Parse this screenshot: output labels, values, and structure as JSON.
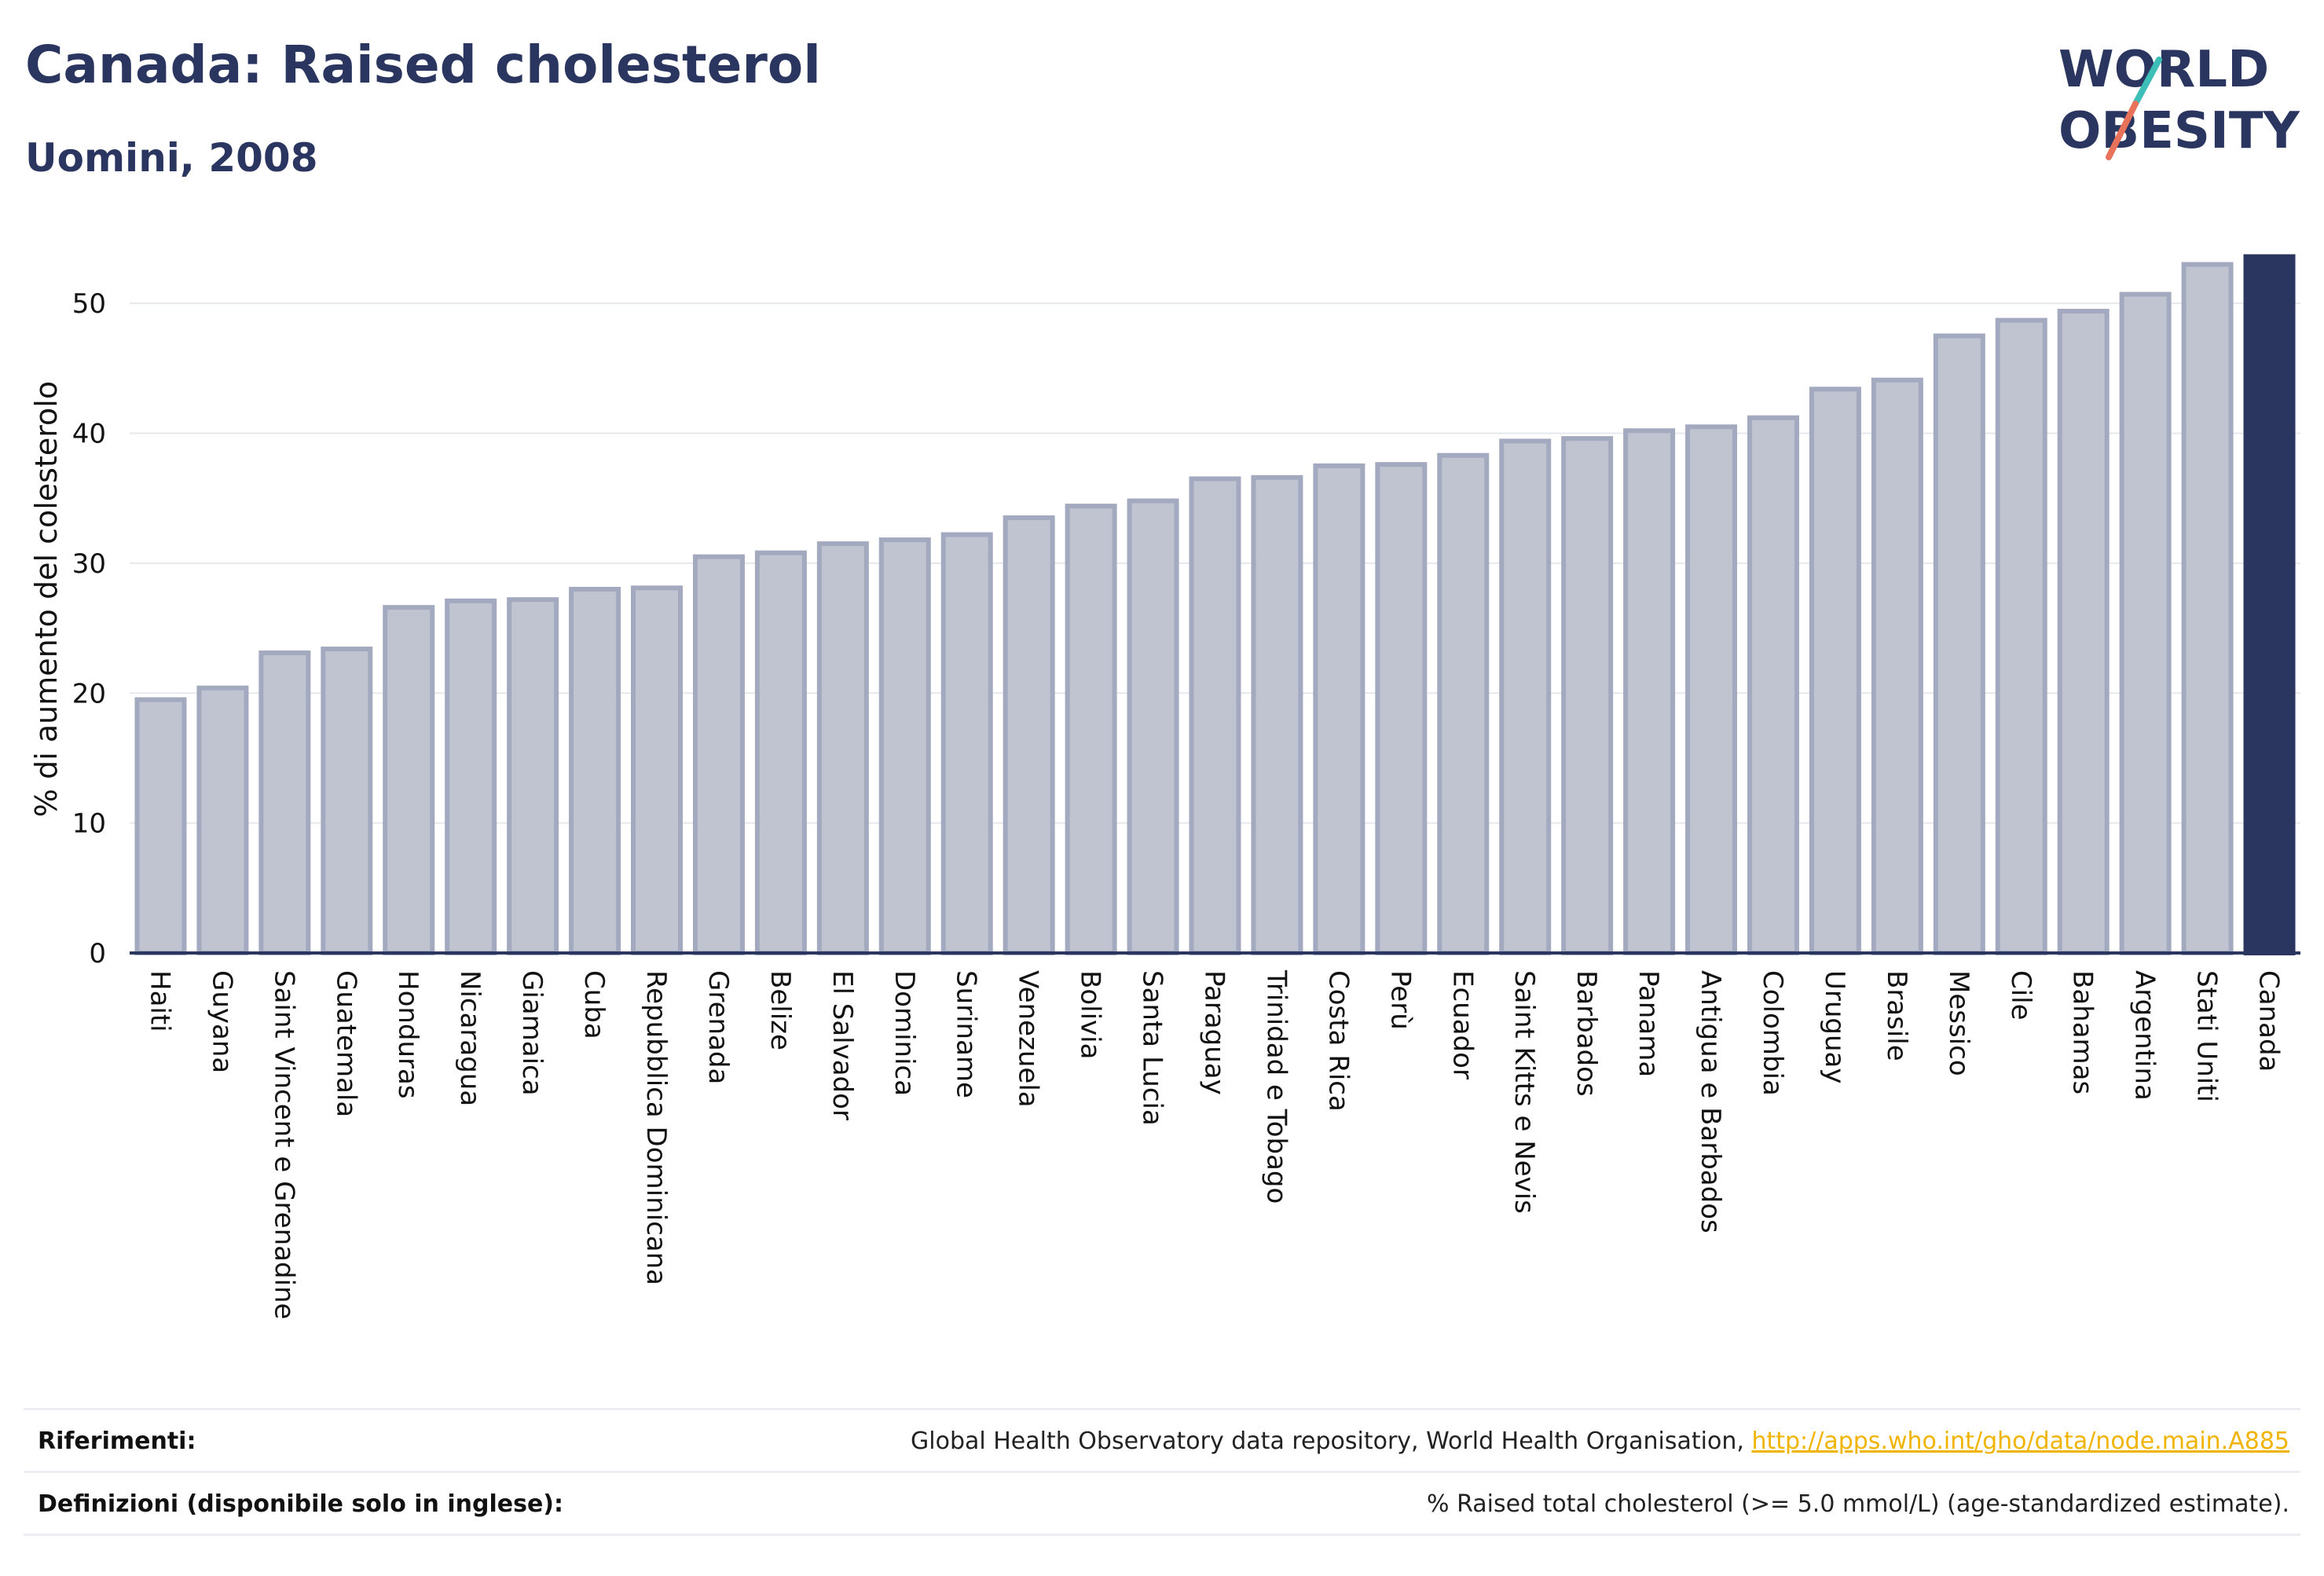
{
  "header": {
    "title": "Canada: Raised cholesterol",
    "subtitle": "Uomini, 2008"
  },
  "logo": {
    "line1": "WORLD",
    "line2": "OBESITY",
    "accent_colors": [
      "#3dbfb8",
      "#e8735a"
    ]
  },
  "chart_data": {
    "type": "bar",
    "title": "Canada: Raised cholesterol",
    "subtitle": "Uomini, 2008",
    "xlabel": "",
    "ylabel": "% di aumento del colesterolo",
    "ylim": [
      0,
      54
    ],
    "yticks": [
      0,
      10,
      20,
      30,
      40,
      50
    ],
    "grid": true,
    "highlight": "Canada",
    "colors": {
      "bar": "#c0c4d1",
      "bar_border": "#a3a9bf",
      "highlight": "#2b3660",
      "axis": "#2b3660",
      "grid": "#e6e8ef"
    },
    "categories": [
      "Haiti",
      "Guyana",
      "Saint Vincent e Grenadine",
      "Guatemala",
      "Honduras",
      "Nicaragua",
      "Giamaica",
      "Cuba",
      "Repubblica Dominicana",
      "Grenada",
      "Belize",
      "El Salvador",
      "Dominica",
      "Suriname",
      "Venezuela",
      "Bolivia",
      "Santa Lucia",
      "Paraguay",
      "Trinidad e Tobago",
      "Costa Rica",
      "Perù",
      "Ecuador",
      "Saint Kitts e Nevis",
      "Barbados",
      "Panama",
      "Antigua e Barbados",
      "Colombia",
      "Uruguay",
      "Brasile",
      "Messico",
      "Cile",
      "Bahamas",
      "Argentina",
      "Stati Uniti",
      "Canada"
    ],
    "values": [
      19.5,
      20.4,
      23.1,
      23.4,
      26.6,
      27.1,
      27.2,
      28.0,
      28.1,
      30.5,
      30.8,
      31.5,
      31.8,
      32.2,
      33.5,
      34.4,
      34.8,
      36.5,
      36.6,
      37.5,
      37.6,
      38.3,
      39.4,
      39.6,
      40.2,
      40.5,
      41.2,
      43.4,
      44.1,
      47.5,
      48.7,
      49.4,
      50.7,
      53.0,
      53.6
    ]
  },
  "footer": {
    "references_label": "Riferimenti:",
    "references_text": "Global Health Observatory data repository, World Health Organisation, ",
    "references_link": "http://apps.who.int/gho/data/node.main.A885",
    "definitions_label": "Definizioni (disponibile solo in inglese):",
    "definitions_text": "% Raised total cholesterol (>= 5.0 mmol/L) (age-standardized estimate)."
  }
}
